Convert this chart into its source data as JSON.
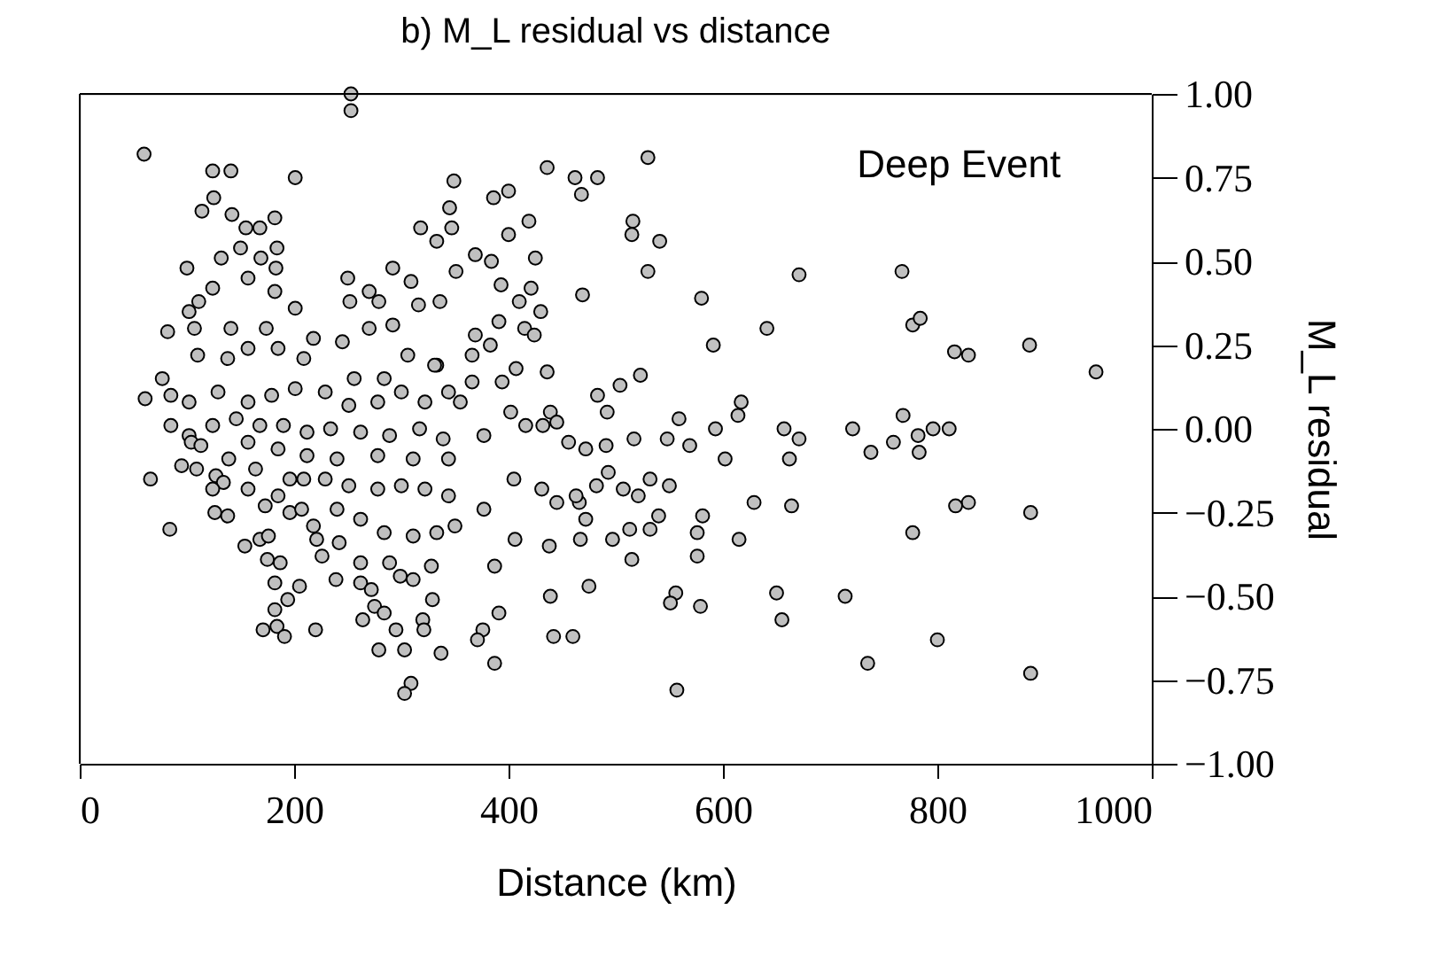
{
  "chart_data": {
    "type": "scatter",
    "title": "b) M_L residual vs distance",
    "xlabel": "Distance (km)",
    "ylabel": "M_L residual",
    "annotations": [
      "Deep Event"
    ],
    "xlim": [
      0,
      1000
    ],
    "xticks": [
      0,
      200,
      400,
      600,
      800,
      1000
    ],
    "ylim": [
      -1.0,
      1.0
    ],
    "yticks": [
      {
        "value": 1.0,
        "label": "1.00"
      },
      {
        "value": 0.75,
        "label": "0.75"
      },
      {
        "value": 0.5,
        "label": "0.50"
      },
      {
        "value": 0.25,
        "label": "0.25"
      },
      {
        "value": 0.0,
        "label": "0.00"
      },
      {
        "value": -0.25,
        "label": "−0.25"
      },
      {
        "value": -0.5,
        "label": "−0.50"
      },
      {
        "value": -0.75,
        "label": "−0.75"
      },
      {
        "value": -1.0,
        "label": "−1.00"
      }
    ],
    "marker": "circle",
    "series": [
      {
        "color": "#c0c0c0",
        "x": [
          60,
          124,
          141,
          201,
          125,
          114,
          142,
          155,
          168,
          182,
          184,
          150,
          132,
          169,
          100,
          183,
          250,
          292,
          252,
          270,
          279,
          309,
          124,
          111,
          102,
          157,
          182,
          201,
          82,
          107,
          141,
          174,
          218,
          245,
          270,
          292,
          316,
          336,
          110,
          138,
          157,
          185,
          209,
          256,
          284,
          306,
          333,
          77,
          61,
          85,
          102,
          129,
          157,
          179,
          201,
          229,
          251,
          278,
          300,
          322,
          344,
          85,
          102,
          124,
          146,
          168,
          190,
          212,
          234,
          262,
          289,
          317,
          339,
          104,
          113,
          157,
          185,
          212,
          240,
          278,
          311,
          344,
          95,
          109,
          139,
          164,
          66,
          127,
          134,
          124,
          157,
          196,
          209,
          229,
          251,
          278,
          300,
          322,
          344,
          173,
          185,
          196,
          207,
          126,
          138,
          218,
          240,
          262,
          284,
          311,
          333,
          154,
          168,
          176,
          84,
          221,
          226,
          242,
          262,
          289,
          328,
          175,
          187,
          182,
          205,
          239,
          262,
          272,
          299,
          311,
          329,
          194,
          182,
          171,
          184,
          191,
          220,
          264,
          275,
          284,
          295,
          320,
          321,
          279,
          303,
          337,
          309,
          303,
          253,
          253,
          349,
          345,
          347,
          318,
          333,
          386,
          400,
          436,
          462,
          483,
          468,
          530,
          516,
          515,
          541,
          530,
          671,
          400,
          419,
          369,
          384,
          425,
          351,
          393,
          421,
          469,
          580,
          430,
          410,
          391,
          415,
          424,
          369,
          383,
          641,
          591,
          436,
          407,
          394,
          366,
          523,
          504,
          483,
          617,
          614,
          559,
          402,
          416,
          439,
          445,
          456,
          492,
          472,
          491,
          517,
          548,
          569,
          593,
          602,
          662,
          657,
          671,
          493,
          482,
          507,
          521,
          532,
          550,
          540,
          532,
          513,
          497,
          515,
          576,
          576,
          581,
          615,
          629,
          664,
          466,
          445,
          463,
          472,
          467,
          438,
          431,
          406,
          387,
          391,
          376,
          371,
          387,
          439,
          475,
          442,
          460,
          556,
          551,
          579,
          557,
          650,
          655,
          405,
          432,
          377,
          355,
          366,
          331,
          377,
          350,
          767,
          777,
          784,
          816,
          829,
          886,
          948,
          768,
          721,
          759,
          738,
          782,
          783,
          796,
          811,
          817,
          829,
          887,
          777,
          714,
          800,
          735,
          887
        ],
        "values": [
          0.82,
          0.77,
          0.77,
          0.75,
          0.69,
          0.65,
          0.64,
          0.6,
          0.6,
          0.63,
          0.54,
          0.54,
          0.51,
          0.51,
          0.48,
          0.48,
          0.45,
          0.48,
          0.38,
          0.41,
          0.38,
          0.44,
          0.42,
          0.38,
          0.35,
          0.45,
          0.41,
          0.36,
          0.29,
          0.3,
          0.3,
          0.3,
          0.27,
          0.26,
          0.3,
          0.31,
          0.37,
          0.38,
          0.22,
          0.21,
          0.24,
          0.24,
          0.21,
          0.15,
          0.15,
          0.22,
          0.19,
          0.15,
          0.09,
          0.1,
          0.08,
          0.11,
          0.08,
          0.1,
          0.12,
          0.11,
          0.07,
          0.08,
          0.11,
          0.08,
          0.11,
          0.01,
          -0.02,
          0.01,
          0.03,
          0.01,
          0.01,
          -0.01,
          0.0,
          -0.01,
          -0.02,
          0.0,
          -0.03,
          -0.04,
          -0.05,
          -0.04,
          -0.06,
          -0.08,
          -0.09,
          -0.08,
          -0.09,
          -0.09,
          -0.11,
          -0.12,
          -0.09,
          -0.12,
          -0.15,
          -0.14,
          -0.16,
          -0.18,
          -0.18,
          -0.15,
          -0.15,
          -0.15,
          -0.17,
          -0.18,
          -0.17,
          -0.18,
          -0.2,
          -0.23,
          -0.2,
          -0.25,
          -0.24,
          -0.25,
          -0.26,
          -0.29,
          -0.24,
          -0.27,
          -0.31,
          -0.32,
          -0.31,
          -0.35,
          -0.33,
          -0.32,
          -0.3,
          -0.33,
          -0.38,
          -0.34,
          -0.4,
          -0.4,
          -0.41,
          -0.39,
          -0.4,
          -0.46,
          -0.47,
          -0.45,
          -0.46,
          -0.48,
          -0.44,
          -0.45,
          -0.51,
          -0.51,
          -0.54,
          -0.6,
          -0.59,
          -0.62,
          -0.6,
          -0.57,
          -0.53,
          -0.55,
          -0.6,
          -0.57,
          -0.6,
          -0.66,
          -0.66,
          -0.67,
          -0.76,
          -0.79,
          1.0,
          0.95,
          0.74,
          0.66,
          0.6,
          0.6,
          0.56,
          0.69,
          0.71,
          0.78,
          0.75,
          0.75,
          0.7,
          0.81,
          0.62,
          0.58,
          0.56,
          0.47,
          0.46,
          0.58,
          0.62,
          0.52,
          0.5,
          0.51,
          0.47,
          0.43,
          0.42,
          0.4,
          0.39,
          0.35,
          0.38,
          0.32,
          0.3,
          0.28,
          0.28,
          0.25,
          0.3,
          0.25,
          0.17,
          0.18,
          0.14,
          0.14,
          0.16,
          0.13,
          0.1,
          0.08,
          0.04,
          0.03,
          0.05,
          0.01,
          0.05,
          0.02,
          -0.04,
          0.05,
          -0.06,
          -0.05,
          -0.03,
          -0.03,
          -0.05,
          0.0,
          -0.09,
          -0.09,
          0.0,
          -0.03,
          -0.13,
          -0.17,
          -0.18,
          -0.2,
          -0.15,
          -0.17,
          -0.26,
          -0.3,
          -0.3,
          -0.33,
          -0.39,
          -0.38,
          -0.31,
          -0.26,
          -0.33,
          -0.22,
          -0.23,
          -0.22,
          -0.22,
          -0.2,
          -0.27,
          -0.33,
          -0.35,
          -0.18,
          -0.33,
          -0.41,
          -0.55,
          -0.6,
          -0.63,
          -0.7,
          -0.5,
          -0.47,
          -0.62,
          -0.62,
          -0.49,
          -0.52,
          -0.53,
          -0.78,
          -0.49,
          -0.57,
          -0.15,
          0.01,
          -0.02,
          0.08,
          0.22,
          0.19,
          -0.24,
          -0.29,
          0.47,
          0.31,
          0.33,
          0.23,
          0.22,
          0.25,
          0.17,
          0.04,
          0.0,
          -0.04,
          -0.07,
          -0.02,
          -0.07,
          0.0,
          0.0,
          -0.23,
          -0.22,
          -0.25,
          -0.31,
          -0.5,
          -0.63,
          -0.7,
          -0.73
        ]
      }
    ]
  }
}
